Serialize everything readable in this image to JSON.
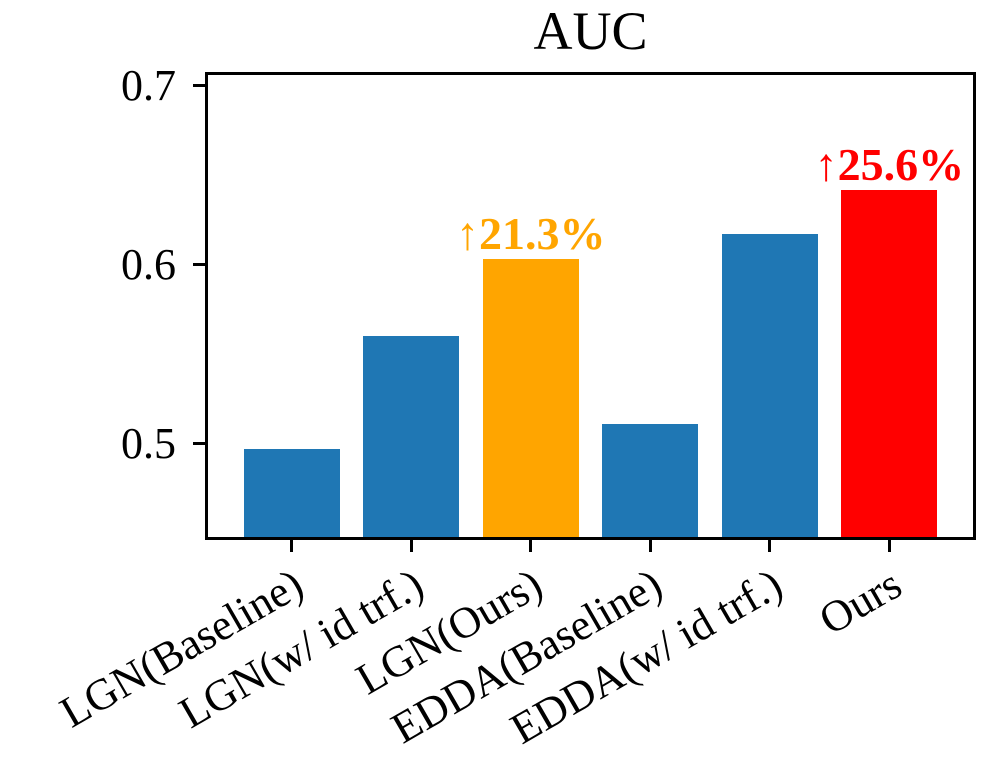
{
  "chart_data": {
    "type": "bar",
    "title": "AUC",
    "categories": [
      "LGN(Baseline)",
      "LGN(w/ id trf.)",
      "LGN(Ours)",
      "EDDA(Baseline)",
      "EDDA(w/ id trf.)",
      "Ours"
    ],
    "values": [
      0.497,
      0.56,
      0.603,
      0.511,
      0.617,
      0.642
    ],
    "bar_colors": [
      "#1f77b4",
      "#1f77b4",
      "#ffa500",
      "#1f77b4",
      "#1f77b4",
      "#ff0000"
    ],
    "bar_width_fraction": 0.8,
    "xlim": [
      -0.7,
      5.7
    ],
    "ylim": [
      0.448,
      0.706
    ],
    "yticks": [
      0.7,
      0.6,
      0.5
    ],
    "ytick_labels": [
      "0.7",
      "0.6",
      "0.5"
    ],
    "xtick_rotation_deg": 30,
    "xlabel": "",
    "ylabel": "",
    "grid": false,
    "legend": null,
    "annotations": [
      {
        "text": "↑21.3%",
        "bar_index": 2,
        "color": "#ffa500"
      },
      {
        "text": "↑25.6%",
        "bar_index": 5,
        "color": "#ff0000"
      }
    ],
    "axis_color": "#000000",
    "background_color": "#ffffff"
  }
}
